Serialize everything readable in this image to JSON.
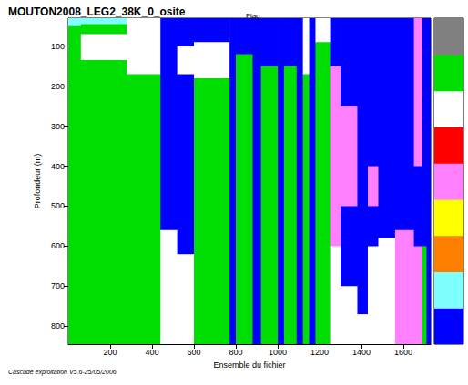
{
  "chart_data": {
    "type": "heatmap",
    "title": "MOUTON2008_LEG2_38K_0_osite",
    "subtitle": "Flag",
    "annotations": [
      "Cascade exploitation V5.6-25/05/2006"
    ],
    "x_label": "Ensemble du fichier",
    "y_label": "Profondeur (m)",
    "xlim": [
      0,
      1730
    ],
    "xticks": [
      200,
      400,
      600,
      800,
      1000,
      1200,
      1400,
      1600
    ],
    "ylim": [
      30,
      845
    ],
    "yticks": [
      100,
      200,
      300,
      400,
      500,
      600,
      700,
      800
    ],
    "colorbar": {
      "range": [
        0.5,
        9.5
      ],
      "colors": [
        "#0000ff",
        "#80ffff",
        "#ff8000",
        "#ffff00",
        "#ff80ff",
        "#ff0000",
        "#ffffff",
        "#00dd00",
        "#808080"
      ]
    },
    "columns": [
      {
        "x": [
          0,
          60
        ],
        "segments": [
          [
            30,
            50,
            2
          ],
          [
            50,
            845,
            8
          ]
        ]
      },
      {
        "x": [
          60,
          280
        ],
        "segments": [
          [
            30,
            45,
            2
          ],
          [
            45,
            70,
            8
          ],
          [
            70,
            135,
            7
          ],
          [
            135,
            845,
            8
          ]
        ]
      },
      {
        "x": [
          280,
          440
        ],
        "segments": [
          [
            30,
            170,
            7
          ],
          [
            170,
            845,
            8
          ]
        ]
      },
      {
        "x": [
          440,
          520
        ],
        "segments": [
          [
            30,
            560,
            1
          ],
          [
            560,
            845,
            7
          ]
        ]
      },
      {
        "x": [
          520,
          600
        ],
        "segments": [
          [
            30,
            100,
            1
          ],
          [
            100,
            170,
            7
          ],
          [
            170,
            620,
            1
          ],
          [
            620,
            845,
            7
          ]
        ]
      },
      {
        "x": [
          600,
          770
        ],
        "segments": [
          [
            30,
            90,
            1
          ],
          [
            90,
            180,
            7
          ],
          [
            180,
            845,
            8
          ]
        ]
      },
      {
        "x": [
          770,
          800
        ],
        "segments": [
          [
            30,
            845,
            1
          ]
        ]
      },
      {
        "x": [
          800,
          880
        ],
        "segments": [
          [
            30,
            120,
            1
          ],
          [
            120,
            845,
            8
          ]
        ]
      },
      {
        "x": [
          880,
          920
        ],
        "segments": [
          [
            30,
            845,
            1
          ]
        ]
      },
      {
        "x": [
          920,
          1000
        ],
        "segments": [
          [
            30,
            150,
            1
          ],
          [
            150,
            845,
            8
          ]
        ]
      },
      {
        "x": [
          1000,
          1030
        ],
        "segments": [
          [
            30,
            845,
            1
          ]
        ]
      },
      {
        "x": [
          1030,
          1090
        ],
        "segments": [
          [
            30,
            150,
            1
          ],
          [
            150,
            845,
            8
          ]
        ]
      },
      {
        "x": [
          1090,
          1120
        ],
        "segments": [
          [
            30,
            845,
            1
          ]
        ]
      },
      {
        "x": [
          1120,
          1150
        ],
        "segments": [
          [
            30,
            170,
            7
          ],
          [
            170,
            845,
            8
          ]
        ]
      },
      {
        "x": [
          1150,
          1180
        ],
        "segments": [
          [
            30,
            845,
            1
          ]
        ]
      },
      {
        "x": [
          1180,
          1250
        ],
        "segments": [
          [
            30,
            90,
            7
          ],
          [
            90,
            845,
            8
          ]
        ]
      },
      {
        "x": [
          1250,
          1300
        ],
        "segments": [
          [
            30,
            150,
            1
          ],
          [
            150,
            600,
            5
          ],
          [
            600,
            845,
            7
          ]
        ]
      },
      {
        "x": [
          1300,
          1380
        ],
        "segments": [
          [
            30,
            250,
            1
          ],
          [
            250,
            500,
            5
          ],
          [
            500,
            700,
            1
          ],
          [
            700,
            845,
            7
          ]
        ]
      },
      {
        "x": [
          1380,
          1430
        ],
        "segments": [
          [
            30,
            770,
            1
          ],
          [
            770,
            845,
            7
          ]
        ]
      },
      {
        "x": [
          1430,
          1480
        ],
        "segments": [
          [
            30,
            400,
            1
          ],
          [
            400,
            500,
            5
          ],
          [
            500,
            600,
            1
          ],
          [
            600,
            845,
            7
          ]
        ]
      },
      {
        "x": [
          1480,
          1560
        ],
        "segments": [
          [
            30,
            580,
            1
          ],
          [
            580,
            845,
            7
          ]
        ]
      },
      {
        "x": [
          1560,
          1650
        ],
        "segments": [
          [
            30,
            560,
            1
          ],
          [
            560,
            845,
            5
          ]
        ]
      },
      {
        "x": [
          1650,
          1690
        ],
        "segments": [
          [
            30,
            400,
            5
          ],
          [
            400,
            600,
            1
          ],
          [
            600,
            845,
            5
          ]
        ]
      },
      {
        "x": [
          1690,
          1710
        ],
        "segments": [
          [
            30,
            600,
            1
          ],
          [
            600,
            845,
            8
          ]
        ]
      },
      {
        "x": [
          1710,
          1730
        ],
        "segments": [
          [
            30,
            845,
            1
          ]
        ]
      }
    ]
  }
}
